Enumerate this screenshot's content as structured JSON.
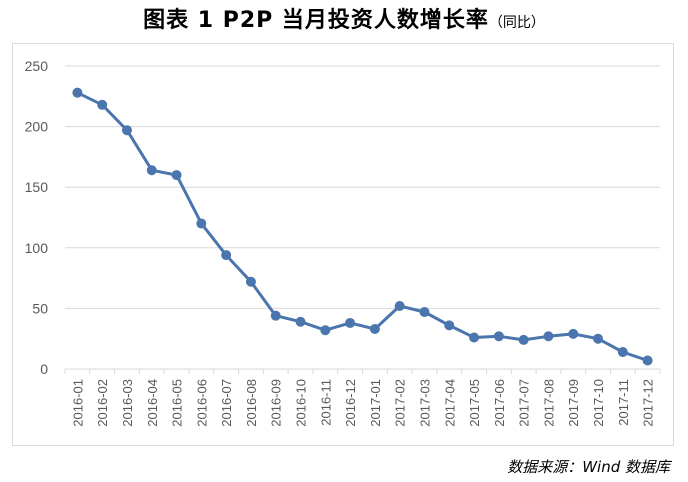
{
  "title": "图表 1  P2P 当月投资人数增长率",
  "subtitle": "（同比）",
  "source": "数据来源：Wind 数据库",
  "colors": {
    "line": "#4a76ad",
    "grid": "#d9d9d9",
    "tick": "#595959"
  },
  "chart_data": {
    "type": "line",
    "title": "图表 1  P2P 当月投资人数增长率（同比）",
    "categories": [
      "2016-01",
      "2016-02",
      "2016-03",
      "2016-04",
      "2016-05",
      "2016-06",
      "2016-07",
      "2016-08",
      "2016-09",
      "2016-10",
      "2016-11",
      "2016-12",
      "2017-01",
      "2017-02",
      "2017-03",
      "2017-04",
      "2017-05",
      "2017-06",
      "2017-07",
      "2017-08",
      "2017-09",
      "2017-10",
      "2017-11",
      "2017-12"
    ],
    "values": [
      228,
      218,
      197,
      164,
      160,
      120,
      94,
      72,
      44,
      39,
      32,
      38,
      33,
      52,
      47,
      36,
      26,
      27,
      24,
      27,
      29,
      25,
      14,
      7
    ],
    "ylim": [
      0,
      250
    ],
    "yticks": [
      0,
      50,
      100,
      150,
      200,
      250
    ],
    "grid": true,
    "markers": true
  }
}
